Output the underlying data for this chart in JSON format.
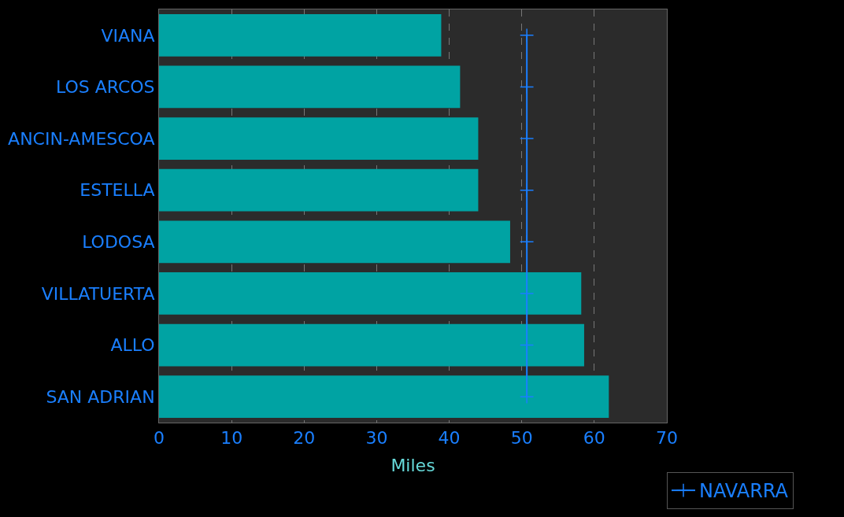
{
  "chart_data": {
    "type": "bar",
    "orientation": "horizontal",
    "xlabel": "Miles",
    "categories": [
      "VIANA",
      "LOS ARCOS",
      "ANCIN-AMESCOA",
      "ESTELLA",
      "LODOSA",
      "VILLATUERTA",
      "ALLO",
      "SAN ADRIAN"
    ],
    "series": [
      {
        "color": "#00a3a3",
        "values": [
          38.9,
          41.5,
          44.0,
          44.0,
          48.4,
          58.2,
          58.6,
          62.0
        ]
      },
      {
        "name": "NAVARRA",
        "type": "line",
        "color": "#1a7fff",
        "marker": "cross",
        "values": [
          50.7,
          50.7,
          50.7,
          50.7,
          50.7,
          50.7,
          50.7,
          50.7
        ]
      }
    ],
    "xlim": [
      0,
      70
    ],
    "xticks": [
      0,
      10,
      20,
      30,
      40,
      50,
      60,
      70
    ],
    "grid": "x",
    "legend": "bottom right"
  }
}
